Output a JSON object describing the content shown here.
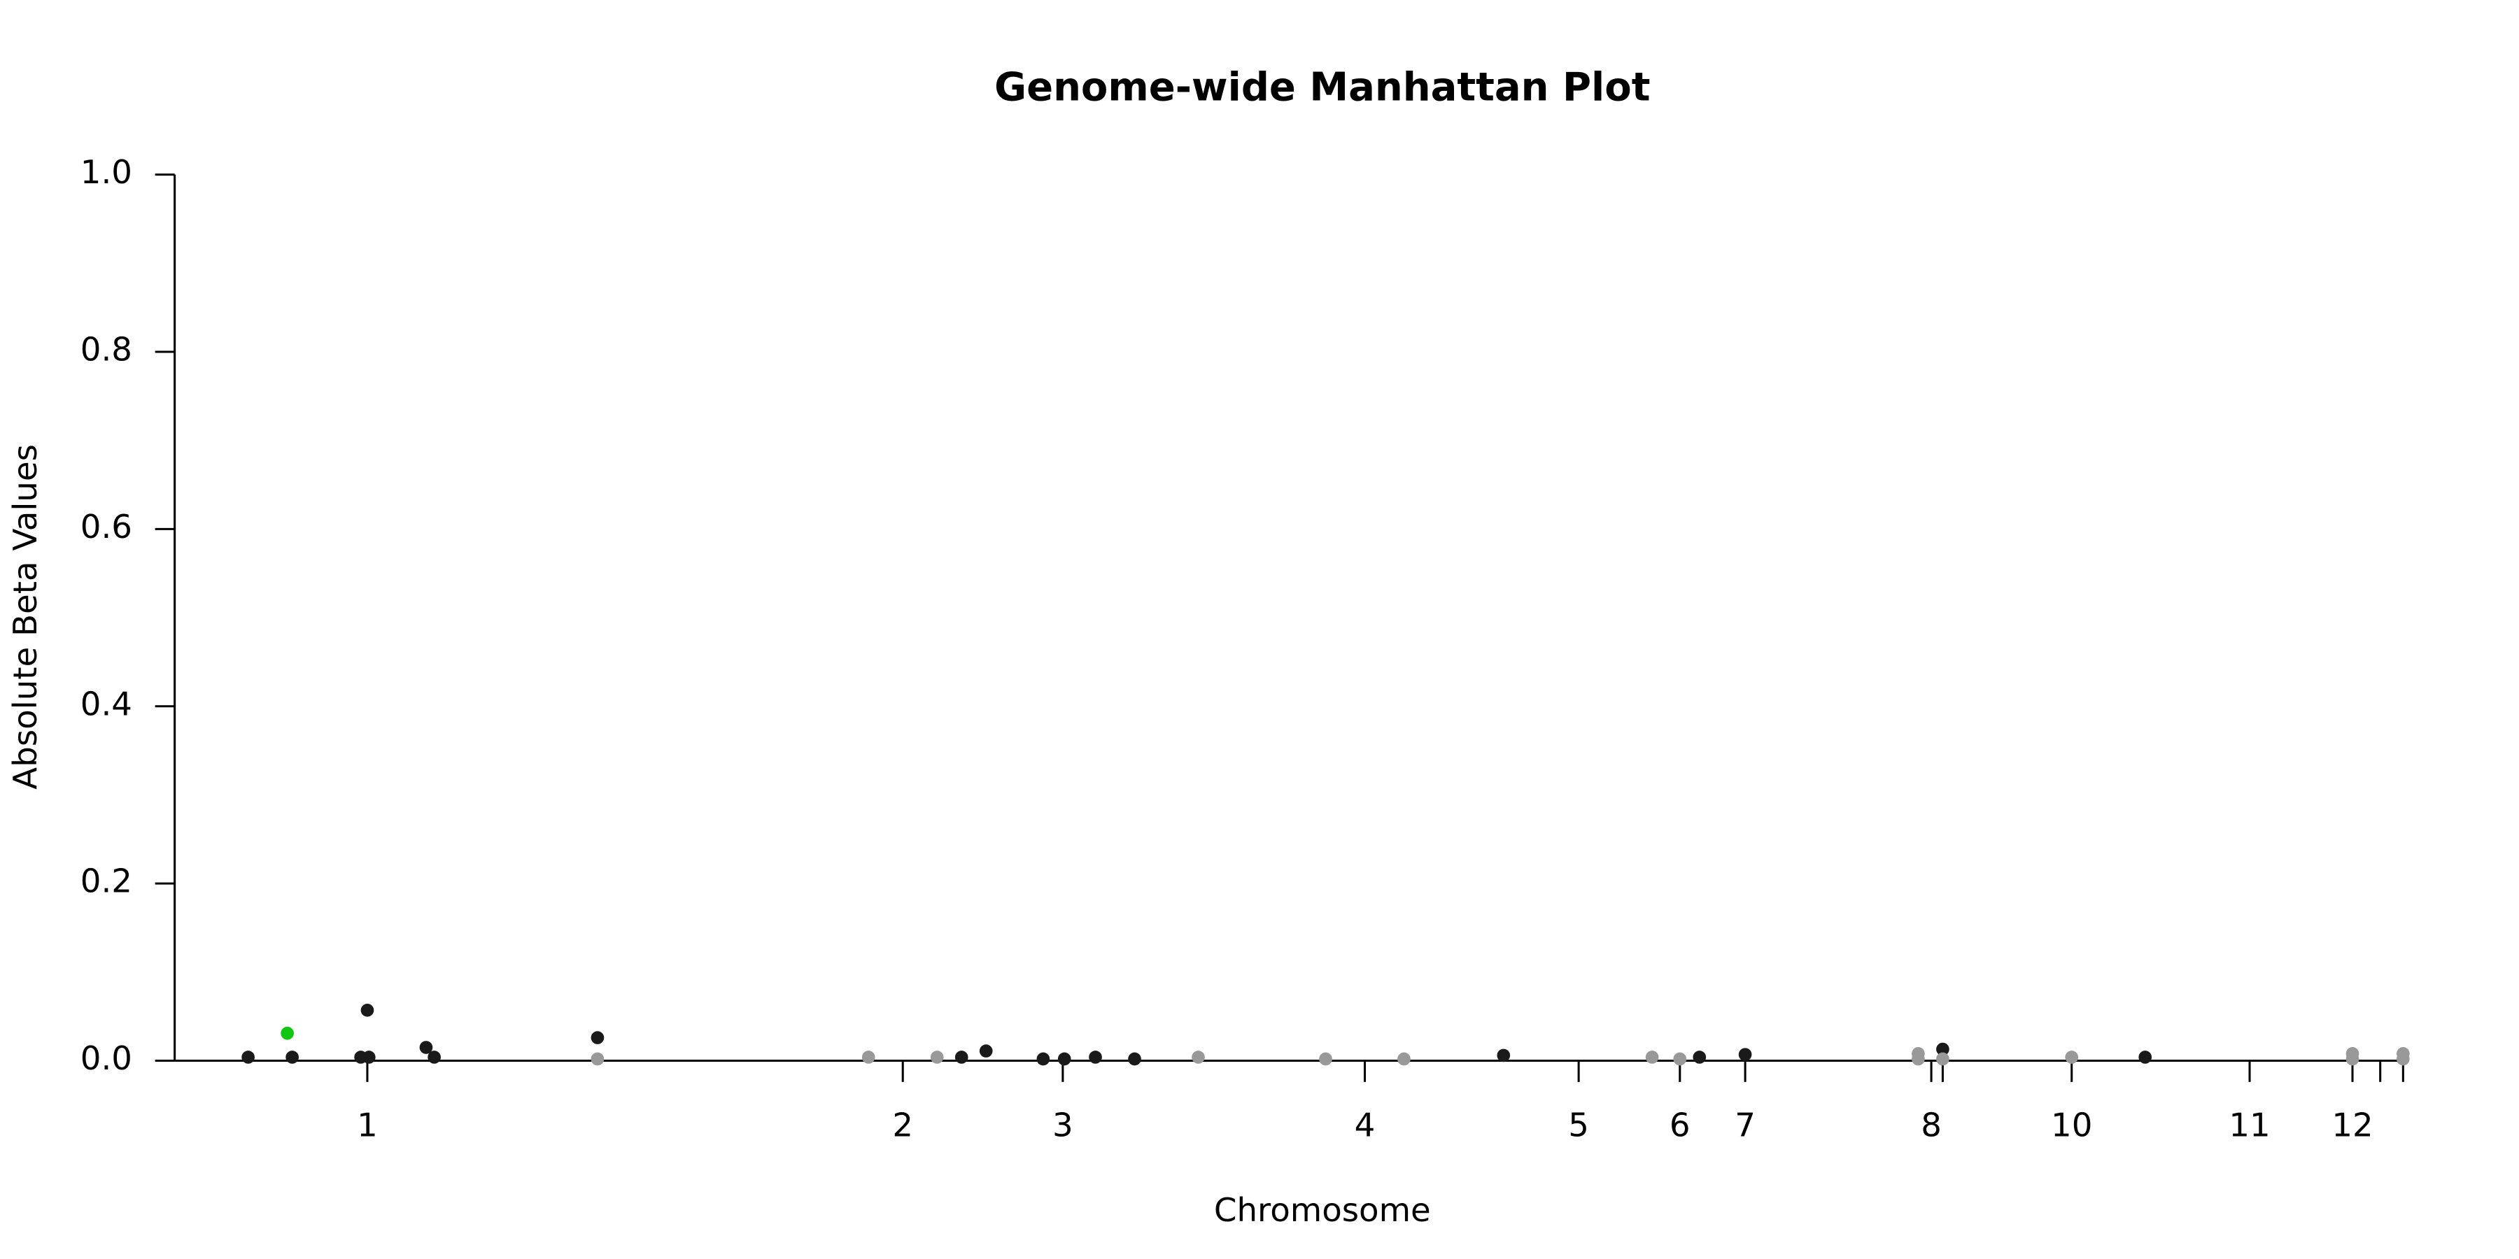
{
  "chart_data": {
    "type": "scatter",
    "title": "Genome-wide Manhattan Plot",
    "x_label": "Chromosome",
    "y_label": "Absolute Beta Values",
    "xlim": [
      0,
      136.5
    ],
    "xticks": [
      {
        "value": 11.8,
        "label": "1"
      },
      {
        "value": 44.6,
        "label": "2"
      },
      {
        "value": 54.4,
        "label": "3"
      },
      {
        "value": 72.9,
        "label": "4"
      },
      {
        "value": 86.0,
        "label": "5"
      },
      {
        "value": 92.2,
        "label": "6"
      },
      {
        "value": 96.2,
        "label": "7"
      },
      {
        "value": 107.6,
        "label": "8"
      },
      {
        "value": 108.3,
        "label": null
      },
      {
        "value": 116.2,
        "label": "10"
      },
      {
        "value": 127.1,
        "label": "11"
      },
      {
        "value": 133.4,
        "label": "12"
      },
      {
        "value": 135.1,
        "label": null
      },
      {
        "value": 136.5,
        "label": null
      }
    ],
    "ylim": [
      0,
      1.0
    ],
    "yticks": [
      {
        "value": 0,
        "label": "0.0"
      },
      0.2,
      0.4,
      0.6,
      0.8,
      {
        "value": 1,
        "label": "1.0"
      }
    ],
    "series": [
      {
        "color": "#1a1a1a",
        "x": [
          4.5,
          7.2,
          11.4,
          11.8,
          11.9,
          15.4,
          15.9,
          25.9,
          48.2,
          49.7,
          53.2,
          54.5,
          56.4,
          58.8,
          81.4,
          93.4,
          96.2,
          108.3,
          120.7
        ],
        "values": [
          0.004,
          0.004,
          0.004,
          0.057,
          0.004,
          0.015,
          0.004,
          0.026,
          0.004,
          0.011,
          0.002,
          0.002,
          0.004,
          0.002,
          0.006,
          0.004,
          0.007,
          0.013,
          0.004
        ]
      },
      {
        "color": "#999999",
        "x": [
          25.9,
          42.5,
          46.7,
          62.7,
          70.5,
          75.3,
          90.5,
          92.2,
          106.8,
          106.8,
          108.3,
          116.2,
          133.4,
          133.4,
          136.5,
          136.5
        ],
        "values": [
          0.002,
          0.004,
          0.004,
          0.004,
          0.002,
          0.002,
          0.004,
          0.002,
          0.008,
          0.002,
          0.002,
          0.004,
          0.008,
          0.002,
          0.008,
          0.002
        ]
      },
      {
        "color": "#11c611",
        "x": [
          6.9
        ],
        "values": [
          0.031
        ]
      }
    ]
  }
}
